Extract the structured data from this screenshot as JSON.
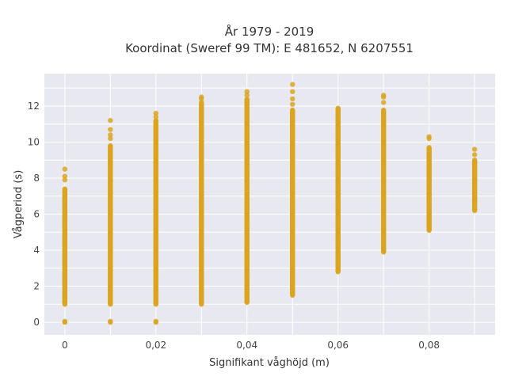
{
  "chart_data": {
    "type": "scatter",
    "title": "År 1979 - 2019",
    "subtitle": "Koordinat (Sweref 99 TM): E 481652, N 6207551",
    "xlabel": "Signifikant våghöjd (m)",
    "ylabel": "Vågperiod (s)",
    "xlim": [
      -0.0045,
      0.0945
    ],
    "ylim": [
      -0.7,
      13.8
    ],
    "x_ticks": [
      0,
      0.02,
      0.04,
      0.06,
      0.08
    ],
    "x_tick_labels": [
      "0",
      "0,02",
      "0,04",
      "0,06",
      "0,08"
    ],
    "y_ticks": [
      0,
      2,
      4,
      6,
      8,
      10,
      12
    ],
    "y_tick_labels": [
      "0",
      "2",
      "4",
      "6",
      "8",
      "10",
      "12"
    ],
    "grid": true,
    "marker_color": "#DAA520",
    "plot_background": "#E8E8F0",
    "series": [
      {
        "columns": [
          {
            "x": 0.0,
            "y_min": 1.0,
            "y_max": 7.4,
            "isolated": [
              0.0,
              0.05,
              7.9,
              8.1,
              8.5
            ]
          },
          {
            "x": 0.01,
            "y_min": 1.0,
            "y_max": 9.8,
            "isolated": [
              0.0,
              0.05,
              10.2,
              10.4,
              10.7,
              11.2
            ]
          },
          {
            "x": 0.02,
            "y_min": 1.0,
            "y_max": 11.2,
            "isolated": [
              0.0,
              0.05,
              11.4,
              11.6
            ]
          },
          {
            "x": 0.03,
            "y_min": 1.0,
            "y_max": 12.2,
            "isolated": [
              12.4,
              12.5
            ]
          },
          {
            "x": 0.04,
            "y_min": 1.1,
            "y_max": 12.4,
            "isolated": [
              12.6,
              12.8
            ]
          },
          {
            "x": 0.05,
            "y_min": 1.5,
            "y_max": 11.8,
            "isolated": [
              12.1,
              12.4,
              12.8,
              13.2
            ]
          },
          {
            "x": 0.06,
            "y_min": 2.8,
            "y_max": 11.9,
            "isolated": []
          },
          {
            "x": 0.07,
            "y_min": 3.9,
            "y_max": 11.8,
            "isolated": [
              12.2,
              12.5,
              12.6
            ]
          },
          {
            "x": 0.08,
            "y_min": 5.1,
            "y_max": 9.7,
            "isolated": [
              10.2,
              10.3
            ]
          },
          {
            "x": 0.09,
            "y_min": 6.2,
            "y_max": 9.0,
            "isolated": [
              9.3,
              9.6
            ]
          }
        ]
      }
    ]
  }
}
